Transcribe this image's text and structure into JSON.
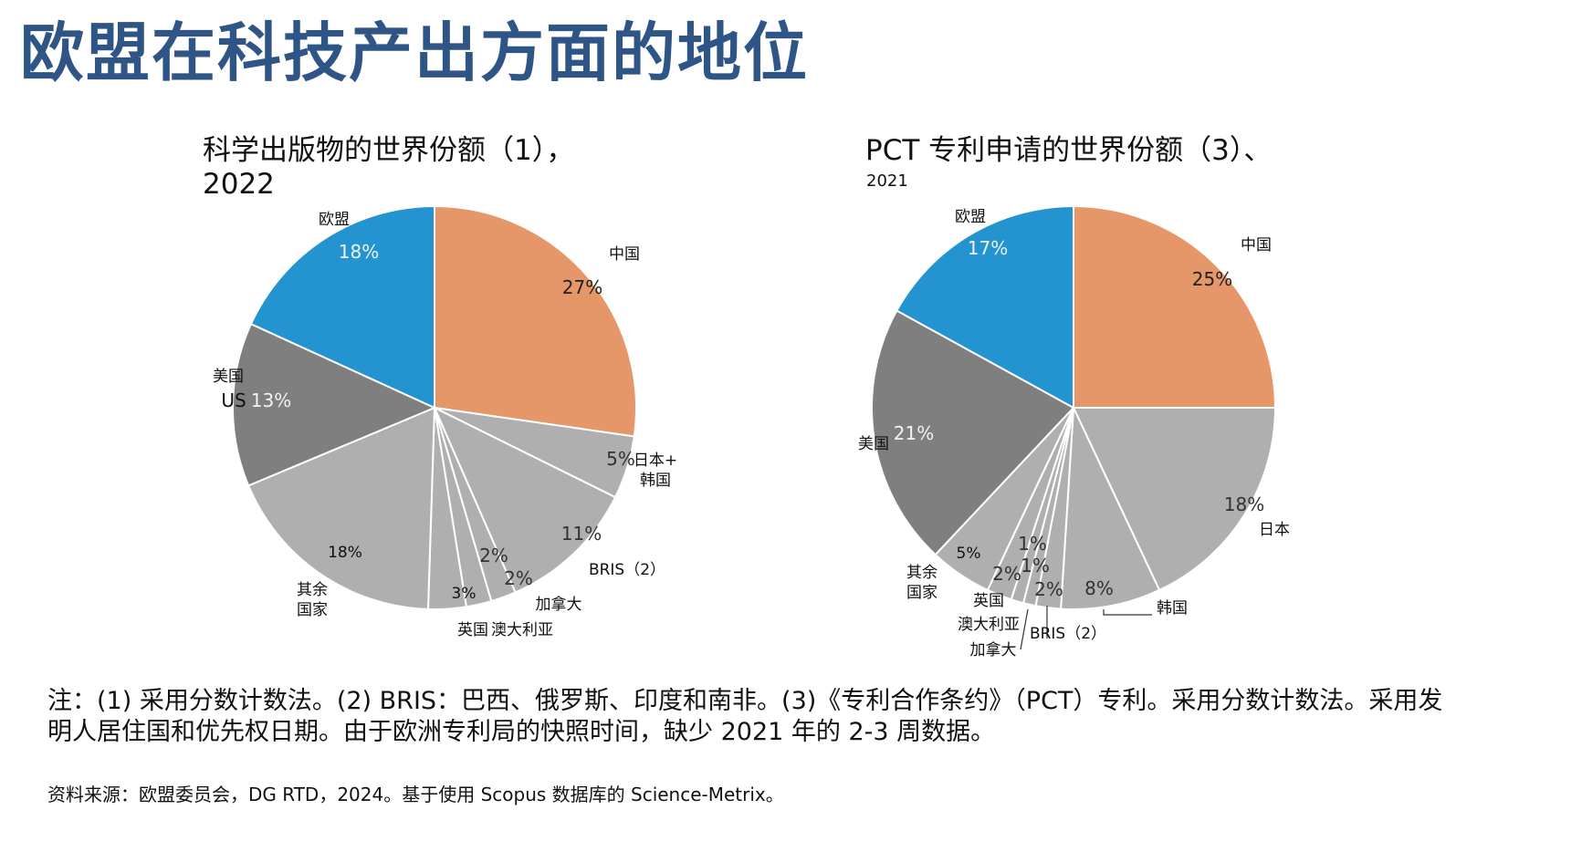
{
  "page": {
    "title": "欧盟在科技产出方面的地位",
    "note_line1": "注：(1) 采用分数计数法。(2) BRIS：巴西、俄罗斯、印度和南非。(3)《专利合作条约》（PCT）专利。采用分数计数法。采用发",
    "note_line2": "明人居住国和优先权日期。由于欧洲专利局的快照时间，缺少 2021 年的 2-3 周数据。",
    "source": "资料来源：欧盟委员会，DG RTD，2024。基于使用 Scopus 数据库的 Science-Metrix。"
  },
  "colors": {
    "eu": "#2394cf",
    "china": "#e5976a",
    "us": "#7f7f7f",
    "other": "#afafaf",
    "title": "#2f5486"
  },
  "chart_data": [
    {
      "type": "pie",
      "title": "科学出版物的世界份额（1），",
      "subtitle": "2022",
      "unit": "%",
      "slices": [
        {
          "key": "china",
          "label": "中国",
          "value": 27,
          "value_label": "27%",
          "color": "china"
        },
        {
          "key": "jpkr",
          "label": "日本+韩国",
          "value": 5,
          "value_label": "5%",
          "color": "other"
        },
        {
          "key": "bris",
          "label": "BRIS（2）",
          "value": 11,
          "value_label": "11%",
          "color": "other"
        },
        {
          "key": "canada",
          "label": "加拿大",
          "value": 2,
          "value_label": "2%",
          "color": "other"
        },
        {
          "key": "australia",
          "label": "澳大利亚",
          "value": 2,
          "value_label": "2%",
          "color": "other"
        },
        {
          "key": "uk",
          "label": "英国",
          "value": 3,
          "value_label": "3%",
          "color": "other"
        },
        {
          "key": "rest",
          "label": "其余国家",
          "value": 18,
          "value_label": "18%",
          "color": "other"
        },
        {
          "key": "us",
          "label": "美国",
          "extra_label": "US",
          "value": 13,
          "value_label": "13%",
          "color": "us"
        },
        {
          "key": "eu",
          "label": "欧盟",
          "value": 18,
          "value_label": "18%",
          "color": "eu"
        }
      ]
    },
    {
      "type": "pie",
      "title": "PCT 专利申请的世界份额（3）、",
      "subtitle": "2021",
      "unit": "%",
      "slices": [
        {
          "key": "china",
          "label": "中国",
          "value": 25,
          "value_label": "25%",
          "color": "china"
        },
        {
          "key": "japan",
          "label": "日本",
          "value": 18,
          "value_label": "18%",
          "color": "other"
        },
        {
          "key": "korea",
          "label": "韩国",
          "value": 8,
          "value_label": "8%",
          "color": "other"
        },
        {
          "key": "bris",
          "label": "BRIS（2）",
          "value": 2,
          "value_label": "2%",
          "color": "other"
        },
        {
          "key": "canada",
          "label": "加拿大",
          "value": 1,
          "value_label": "1%",
          "color": "other"
        },
        {
          "key": "australia",
          "label": "澳大利亚",
          "value": 1,
          "value_label": "1%",
          "color": "other"
        },
        {
          "key": "uk",
          "label": "英国",
          "value": 2,
          "value_label": "2%",
          "color": "other"
        },
        {
          "key": "rest",
          "label": "其余国家",
          "value": 5,
          "value_label": "5%",
          "color": "other"
        },
        {
          "key": "us",
          "label": "美国",
          "value": 21,
          "value_label": "21%",
          "color": "us"
        },
        {
          "key": "eu",
          "label": "欧盟",
          "value": 17,
          "value_label": "17%",
          "color": "eu"
        }
      ]
    }
  ]
}
